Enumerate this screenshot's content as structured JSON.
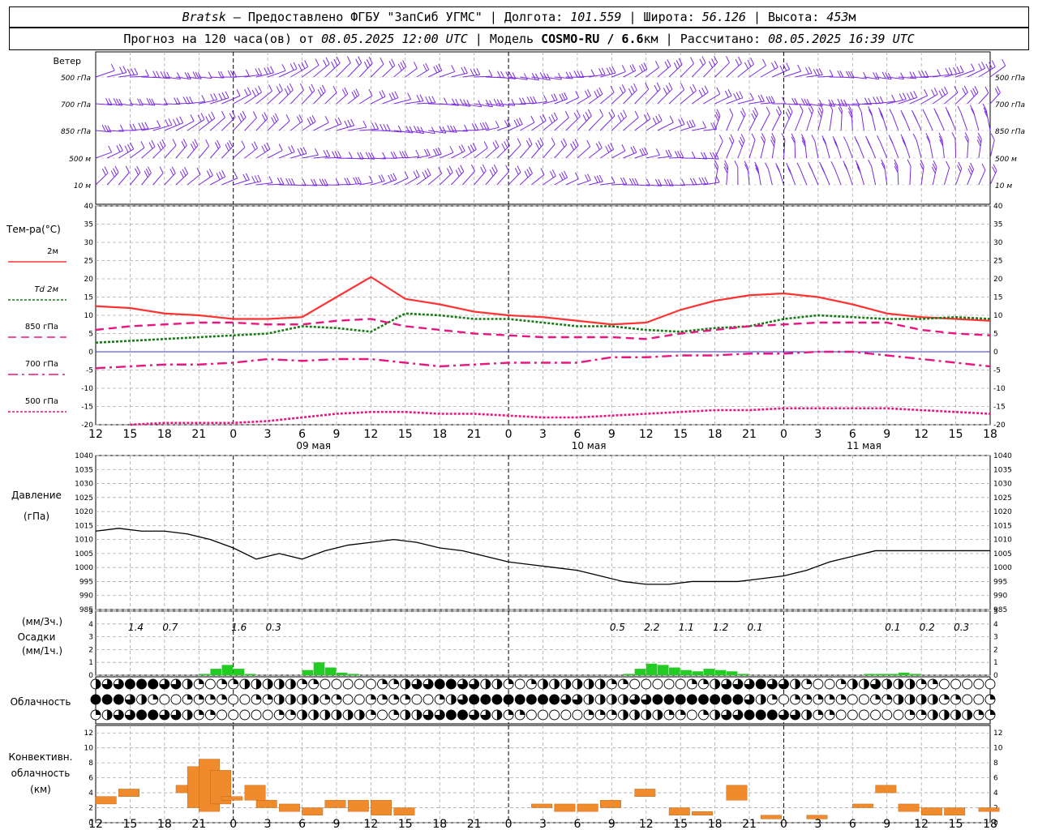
{
  "header": {
    "station": "Bratsk",
    "provider": "– Предоставлено ФГБУ \"ЗапСиб УГМС\"",
    "lon_label": "Долгота:",
    "lon_value": "101.559",
    "lat_label": "Широта:",
    "lat_value": "56.126",
    "alt_label": "Высота:",
    "alt_value": "453",
    "alt_unit": "м",
    "forecast_label": "Прогноз на 120 часа(ов) от",
    "forecast_start": "08.05.2025 12:00 UTC",
    "model_label": "Модель",
    "model_name": "COSMO-RU / 6.6",
    "model_unit": "км",
    "calc_label": "Рассчитано:",
    "calc_time": "08.05.2025 16:39 UTC"
  },
  "wind_panel": {
    "title": "Ветер",
    "levels": [
      "500 гПа",
      "700 гПа",
      "850 гПа",
      "500 м",
      "10  м"
    ]
  },
  "temp_panel": {
    "title": "Тем-ра(°C)",
    "legend": [
      {
        "label": "2м",
        "color": "#ff3333",
        "style": "solid"
      },
      {
        "label": "Td  2м",
        "color": "#1a7a1a",
        "style": "dotted"
      },
      {
        "label": "850 гПа",
        "color": "#e8177f",
        "style": "dashed"
      },
      {
        "label": "700 гПа",
        "color": "#e8177f",
        "style": "dashdot"
      },
      {
        "label": "500 гПа",
        "color": "#e8177f",
        "style": "dotted"
      }
    ],
    "y_ticks": [
      40,
      35,
      30,
      25,
      20,
      15,
      10,
      5,
      0,
      -5,
      -10,
      -15,
      -20
    ]
  },
  "time_axis": {
    "hours": [
      "12",
      "15",
      "18",
      "21",
      "0",
      "3",
      "6",
      "9",
      "12",
      "15",
      "18",
      "21",
      "0",
      "3",
      "6",
      "9",
      "12",
      "15",
      "18",
      "21",
      "0",
      "3",
      "6",
      "9",
      "12",
      "15",
      "18"
    ],
    "dates": [
      "09 мая",
      "10 мая",
      "11 мая"
    ]
  },
  "pressure_panel": {
    "title": "Давление",
    "unit": "(гПа)",
    "y_ticks": [
      1040,
      1035,
      1030,
      1025,
      1020,
      1015,
      1010,
      1005,
      1000,
      995,
      990,
      985
    ]
  },
  "precip_panel": {
    "unit_3h": "(мм/3ч.)",
    "title": "Осадки",
    "unit_1h": "(мм/1ч.)",
    "y_ticks": [
      5,
      4,
      3,
      2,
      1,
      0
    ],
    "sums_3h": [
      {
        "hour": 3.5,
        "label": "1.4"
      },
      {
        "hour": 6.5,
        "label": "0.7"
      },
      {
        "hour": 12.5,
        "label": "1.6"
      },
      {
        "hour": 15.5,
        "label": "0.3"
      },
      {
        "hour": 45.5,
        "label": "0.5"
      },
      {
        "hour": 48.5,
        "label": "2.2"
      },
      {
        "hour": 51.5,
        "label": "1.1"
      },
      {
        "hour": 54.5,
        "label": "1.2"
      },
      {
        "hour": 57.5,
        "label": "0.1"
      },
      {
        "hour": 69.5,
        "label": "0.1"
      },
      {
        "hour": 72.5,
        "label": "0.2"
      },
      {
        "hour": 75.5,
        "label": "0.3"
      }
    ]
  },
  "cloud_panel": {
    "title": "Облачность"
  },
  "conv_panel": {
    "title_line1": "Конвективн.",
    "title_line2": "облачность",
    "unit": "(км)",
    "y_ticks": [
      12,
      10,
      8,
      6,
      4,
      2,
      0
    ]
  },
  "colors": {
    "wind": "#7a2be0",
    "precip": "#22cc22",
    "conv": "#ef8b2c",
    "grid": "#aaaaaa",
    "zero_line": "#3333cc"
  },
  "chart_data": [
    {
      "type": "line",
      "title": "Тем-ра(°C)",
      "x_hours": [
        0,
        3,
        6,
        9,
        12,
        15,
        18,
        21,
        24,
        27,
        30,
        33,
        36,
        39,
        42,
        45,
        48,
        51,
        54,
        57,
        60,
        63,
        66,
        69,
        72,
        75,
        78
      ],
      "ylim": [
        -20,
        40
      ],
      "series": [
        {
          "name": "2м",
          "values": [
            12.5,
            12,
            10.5,
            10,
            9,
            9,
            9.5,
            15,
            20.5,
            14.5,
            13,
            11,
            10,
            9.5,
            8.5,
            7.5,
            8,
            11.5,
            14,
            15.5,
            16,
            15,
            13,
            10.5,
            9.5,
            9,
            8.5
          ]
        },
        {
          "name": "Td  2м",
          "values": [
            2.5,
            3,
            3.5,
            4,
            4.5,
            5,
            7,
            6.5,
            5.5,
            10.5,
            10,
            9,
            9,
            8,
            7,
            7,
            6,
            5.5,
            6.5,
            7,
            9,
            10,
            9.5,
            9,
            9,
            9.5,
            9
          ]
        },
        {
          "name": "850 гПа",
          "values": [
            6,
            7,
            7.5,
            8,
            8,
            7.5,
            7.5,
            8.5,
            9,
            7,
            6,
            5,
            4.5,
            4,
            4,
            4,
            3.5,
            5,
            6,
            7,
            7.5,
            8,
            8,
            8,
            6,
            5,
            4.5
          ]
        },
        {
          "name": "700 гПа",
          "values": [
            -4.5,
            -4,
            -3.5,
            -3.5,
            -3,
            -2,
            -2.5,
            -2,
            -2,
            -3,
            -4,
            -3.5,
            -3,
            -3,
            -3,
            -1.5,
            -1.5,
            -1,
            -1,
            -0.5,
            -0.5,
            0,
            0,
            -1,
            -2,
            -3,
            -4
          ]
        },
        {
          "name": "500 гПа",
          "values": [
            null,
            -20,
            -19.5,
            -19.5,
            -19.5,
            -19,
            -18,
            -17,
            -16.5,
            -16.5,
            -17,
            -17,
            -17.5,
            -18,
            -18,
            -17.5,
            -17,
            -16.5,
            -16,
            -16,
            -15.5,
            -15.5,
            -15.5,
            -15.5,
            -16,
            -16.5,
            -17
          ]
        }
      ]
    },
    {
      "type": "line",
      "title": "Давление",
      "ylabel": "(гПа)",
      "x_hours": [
        0,
        2,
        4,
        6,
        8,
        10,
        12,
        14,
        16,
        18,
        20,
        22,
        24,
        26,
        28,
        30,
        32,
        34,
        36,
        38,
        40,
        42,
        44,
        46,
        48,
        50,
        52,
        54,
        56,
        58,
        60,
        62,
        64,
        66,
        68,
        70,
        72,
        74,
        76,
        78
      ],
      "ylim": [
        985,
        1040
      ],
      "values": [
        1013,
        1014,
        1013,
        1013,
        1012,
        1010,
        1007,
        1003,
        1005,
        1003,
        1006,
        1008,
        1009,
        1010,
        1009,
        1007,
        1006,
        1004,
        1002,
        1001,
        1000,
        999,
        997,
        995,
        994,
        994,
        995,
        995,
        995,
        996,
        997,
        999,
        1002,
        1004,
        1006,
        1006,
        1006,
        1006,
        1006,
        1006
      ]
    },
    {
      "type": "bar",
      "title": "Осадки",
      "ylabel": "(мм/1ч.)",
      "ylim": [
        0,
        5
      ],
      "bars": [
        {
          "hour": 9,
          "value": 0.1
        },
        {
          "hour": 10,
          "value": 0.5
        },
        {
          "hour": 11,
          "value": 0.8
        },
        {
          "hour": 12,
          "value": 0.5
        },
        {
          "hour": 13,
          "value": 0.1
        },
        {
          "hour": 18,
          "value": 0.4
        },
        {
          "hour": 19,
          "value": 1.0
        },
        {
          "hour": 20,
          "value": 0.6
        },
        {
          "hour": 21,
          "value": 0.2
        },
        {
          "hour": 22,
          "value": 0.1
        },
        {
          "hour": 46,
          "value": 0.1
        },
        {
          "hour": 47,
          "value": 0.5
        },
        {
          "hour": 48,
          "value": 0.9
        },
        {
          "hour": 49,
          "value": 0.8
        },
        {
          "hour": 50,
          "value": 0.6
        },
        {
          "hour": 51,
          "value": 0.4
        },
        {
          "hour": 52,
          "value": 0.3
        },
        {
          "hour": 53,
          "value": 0.5
        },
        {
          "hour": 54,
          "value": 0.4
        },
        {
          "hour": 55,
          "value": 0.3
        },
        {
          "hour": 56,
          "value": 0.1
        },
        {
          "hour": 67,
          "value": 0.1
        },
        {
          "hour": 68,
          "value": 0.1
        },
        {
          "hour": 69,
          "value": 0.1
        },
        {
          "hour": 70,
          "value": 0.2
        },
        {
          "hour": 71,
          "value": 0.1
        }
      ]
    },
    {
      "type": "bar",
      "title": "Конвективн. облачность",
      "ylabel": "(км)",
      "ylim": [
        0,
        13
      ],
      "bars": [
        {
          "hour": 0,
          "base": 2.5,
          "top": 3.5
        },
        {
          "hour": 2,
          "base": 3.5,
          "top": 4.5
        },
        {
          "hour": 7,
          "base": 4,
          "top": 5
        },
        {
          "hour": 8,
          "base": 2,
          "top": 7.5
        },
        {
          "hour": 9,
          "base": 1.5,
          "top": 8.5
        },
        {
          "hour": 10,
          "base": 2.5,
          "top": 7
        },
        {
          "hour": 11,
          "base": 3,
          "top": 3.5
        },
        {
          "hour": 13,
          "base": 3,
          "top": 5
        },
        {
          "hour": 14,
          "base": 2,
          "top": 3
        },
        {
          "hour": 16,
          "base": 1.5,
          "top": 2.5
        },
        {
          "hour": 18,
          "base": 1,
          "top": 2
        },
        {
          "hour": 20,
          "base": 2,
          "top": 3
        },
        {
          "hour": 22,
          "base": 1.5,
          "top": 3
        },
        {
          "hour": 24,
          "base": 1,
          "top": 3
        },
        {
          "hour": 26,
          "base": 1,
          "top": 2
        },
        {
          "hour": 38,
          "base": 2,
          "top": 2.5
        },
        {
          "hour": 40,
          "base": 1.5,
          "top": 2.5
        },
        {
          "hour": 42,
          "base": 1.5,
          "top": 2.5
        },
        {
          "hour": 44,
          "base": 2,
          "top": 3
        },
        {
          "hour": 47,
          "base": 3.5,
          "top": 4.5
        },
        {
          "hour": 50,
          "base": 1,
          "top": 2
        },
        {
          "hour": 52,
          "base": 1,
          "top": 1.5
        },
        {
          "hour": 55,
          "base": 3,
          "top": 5
        },
        {
          "hour": 58,
          "base": 0.5,
          "top": 1
        },
        {
          "hour": 62,
          "base": 0.5,
          "top": 1
        },
        {
          "hour": 66,
          "base": 2,
          "top": 2.5
        },
        {
          "hour": 68,
          "base": 4,
          "top": 5
        },
        {
          "hour": 70,
          "base": 1.5,
          "top": 2.5
        },
        {
          "hour": 72,
          "base": 1,
          "top": 2
        },
        {
          "hour": 74,
          "base": 1,
          "top": 2
        },
        {
          "hour": 77,
          "base": 1.5,
          "top": 2
        }
      ]
    }
  ]
}
